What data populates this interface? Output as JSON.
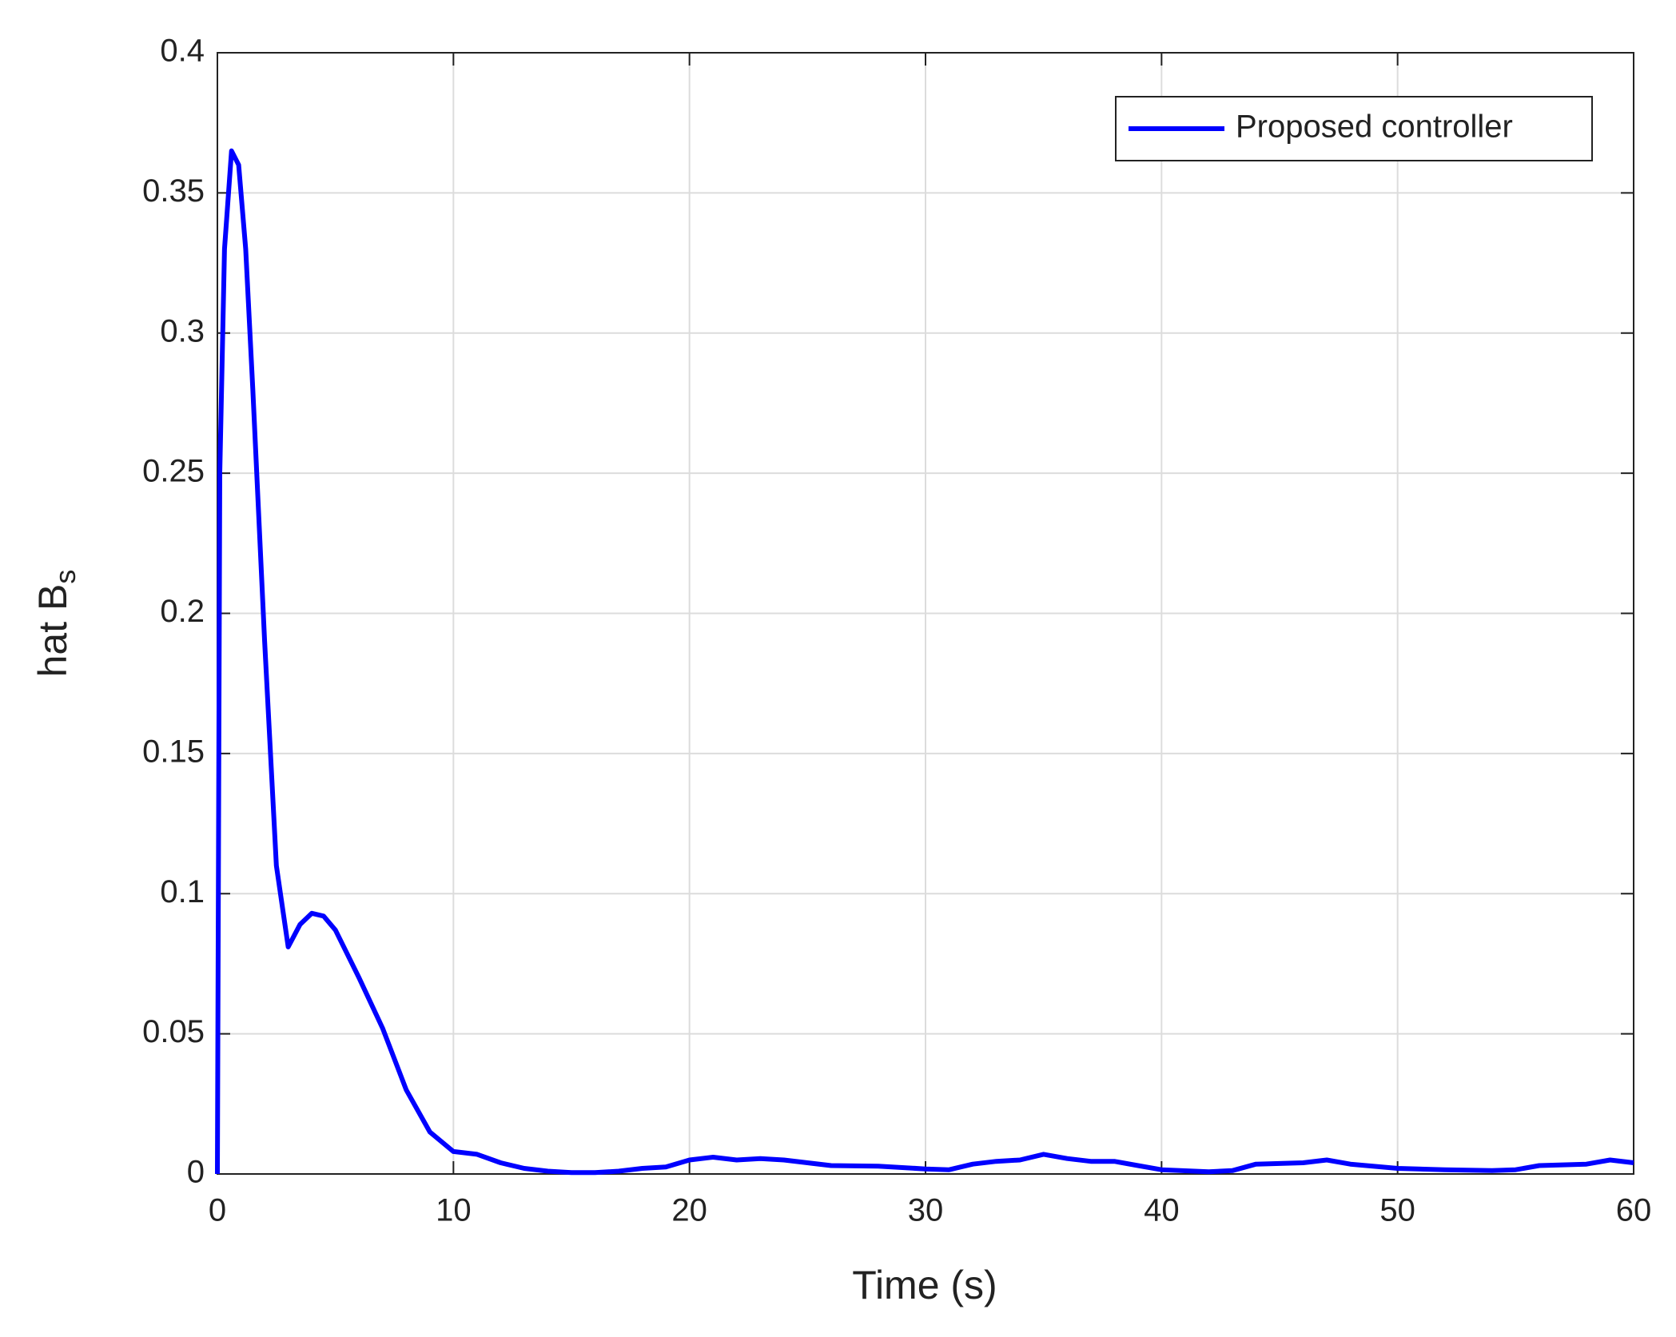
{
  "chart_data": {
    "type": "line",
    "xlabel": "Time (s)",
    "ylabel": "hat B",
    "ylabel_subscript": "s",
    "x": [
      0,
      0.1,
      0.3,
      0.6,
      0.9,
      1.2,
      1.5,
      2,
      2.5,
      3,
      3.5,
      4,
      4.5,
      5,
      6,
      7,
      8,
      9,
      10,
      11,
      12,
      13,
      14,
      15,
      16,
      17,
      18,
      19,
      20,
      21,
      22,
      23,
      24,
      25,
      26,
      28,
      30,
      31,
      32,
      33,
      34,
      35,
      36,
      37,
      38,
      39,
      40,
      42,
      43,
      44,
      46,
      47,
      48,
      50,
      52,
      54,
      55,
      56,
      58,
      59,
      60
    ],
    "series": [
      {
        "name": "Proposed controller",
        "color": "#0000ff",
        "values": [
          0,
          0.25,
          0.33,
          0.365,
          0.36,
          0.33,
          0.28,
          0.19,
          0.11,
          0.081,
          0.089,
          0.093,
          0.092,
          0.087,
          0.07,
          0.052,
          0.03,
          0.015,
          0.008,
          0.007,
          0.004,
          0.002,
          0.001,
          0.0005,
          0.0005,
          0.001,
          0.002,
          0.0025,
          0.005,
          0.006,
          0.005,
          0.0055,
          0.005,
          0.004,
          0.003,
          0.0028,
          0.0018,
          0.0015,
          0.0035,
          0.0045,
          0.005,
          0.007,
          0.0055,
          0.0045,
          0.0045,
          0.003,
          0.0015,
          0.0008,
          0.0012,
          0.0035,
          0.004,
          0.005,
          0.0035,
          0.002,
          0.0015,
          0.0012,
          0.0015,
          0.003,
          0.0035,
          0.005,
          0.004
        ]
      }
    ],
    "xlim": [
      0,
      60
    ],
    "xticks": [
      0,
      10,
      20,
      30,
      40,
      50,
      60
    ],
    "ylim": [
      0,
      0.4
    ],
    "yticks": [
      0,
      0.05,
      0.1,
      0.15,
      0.2,
      0.25,
      0.3,
      0.35,
      0.4
    ],
    "grid": true,
    "legend": "upper right"
  }
}
